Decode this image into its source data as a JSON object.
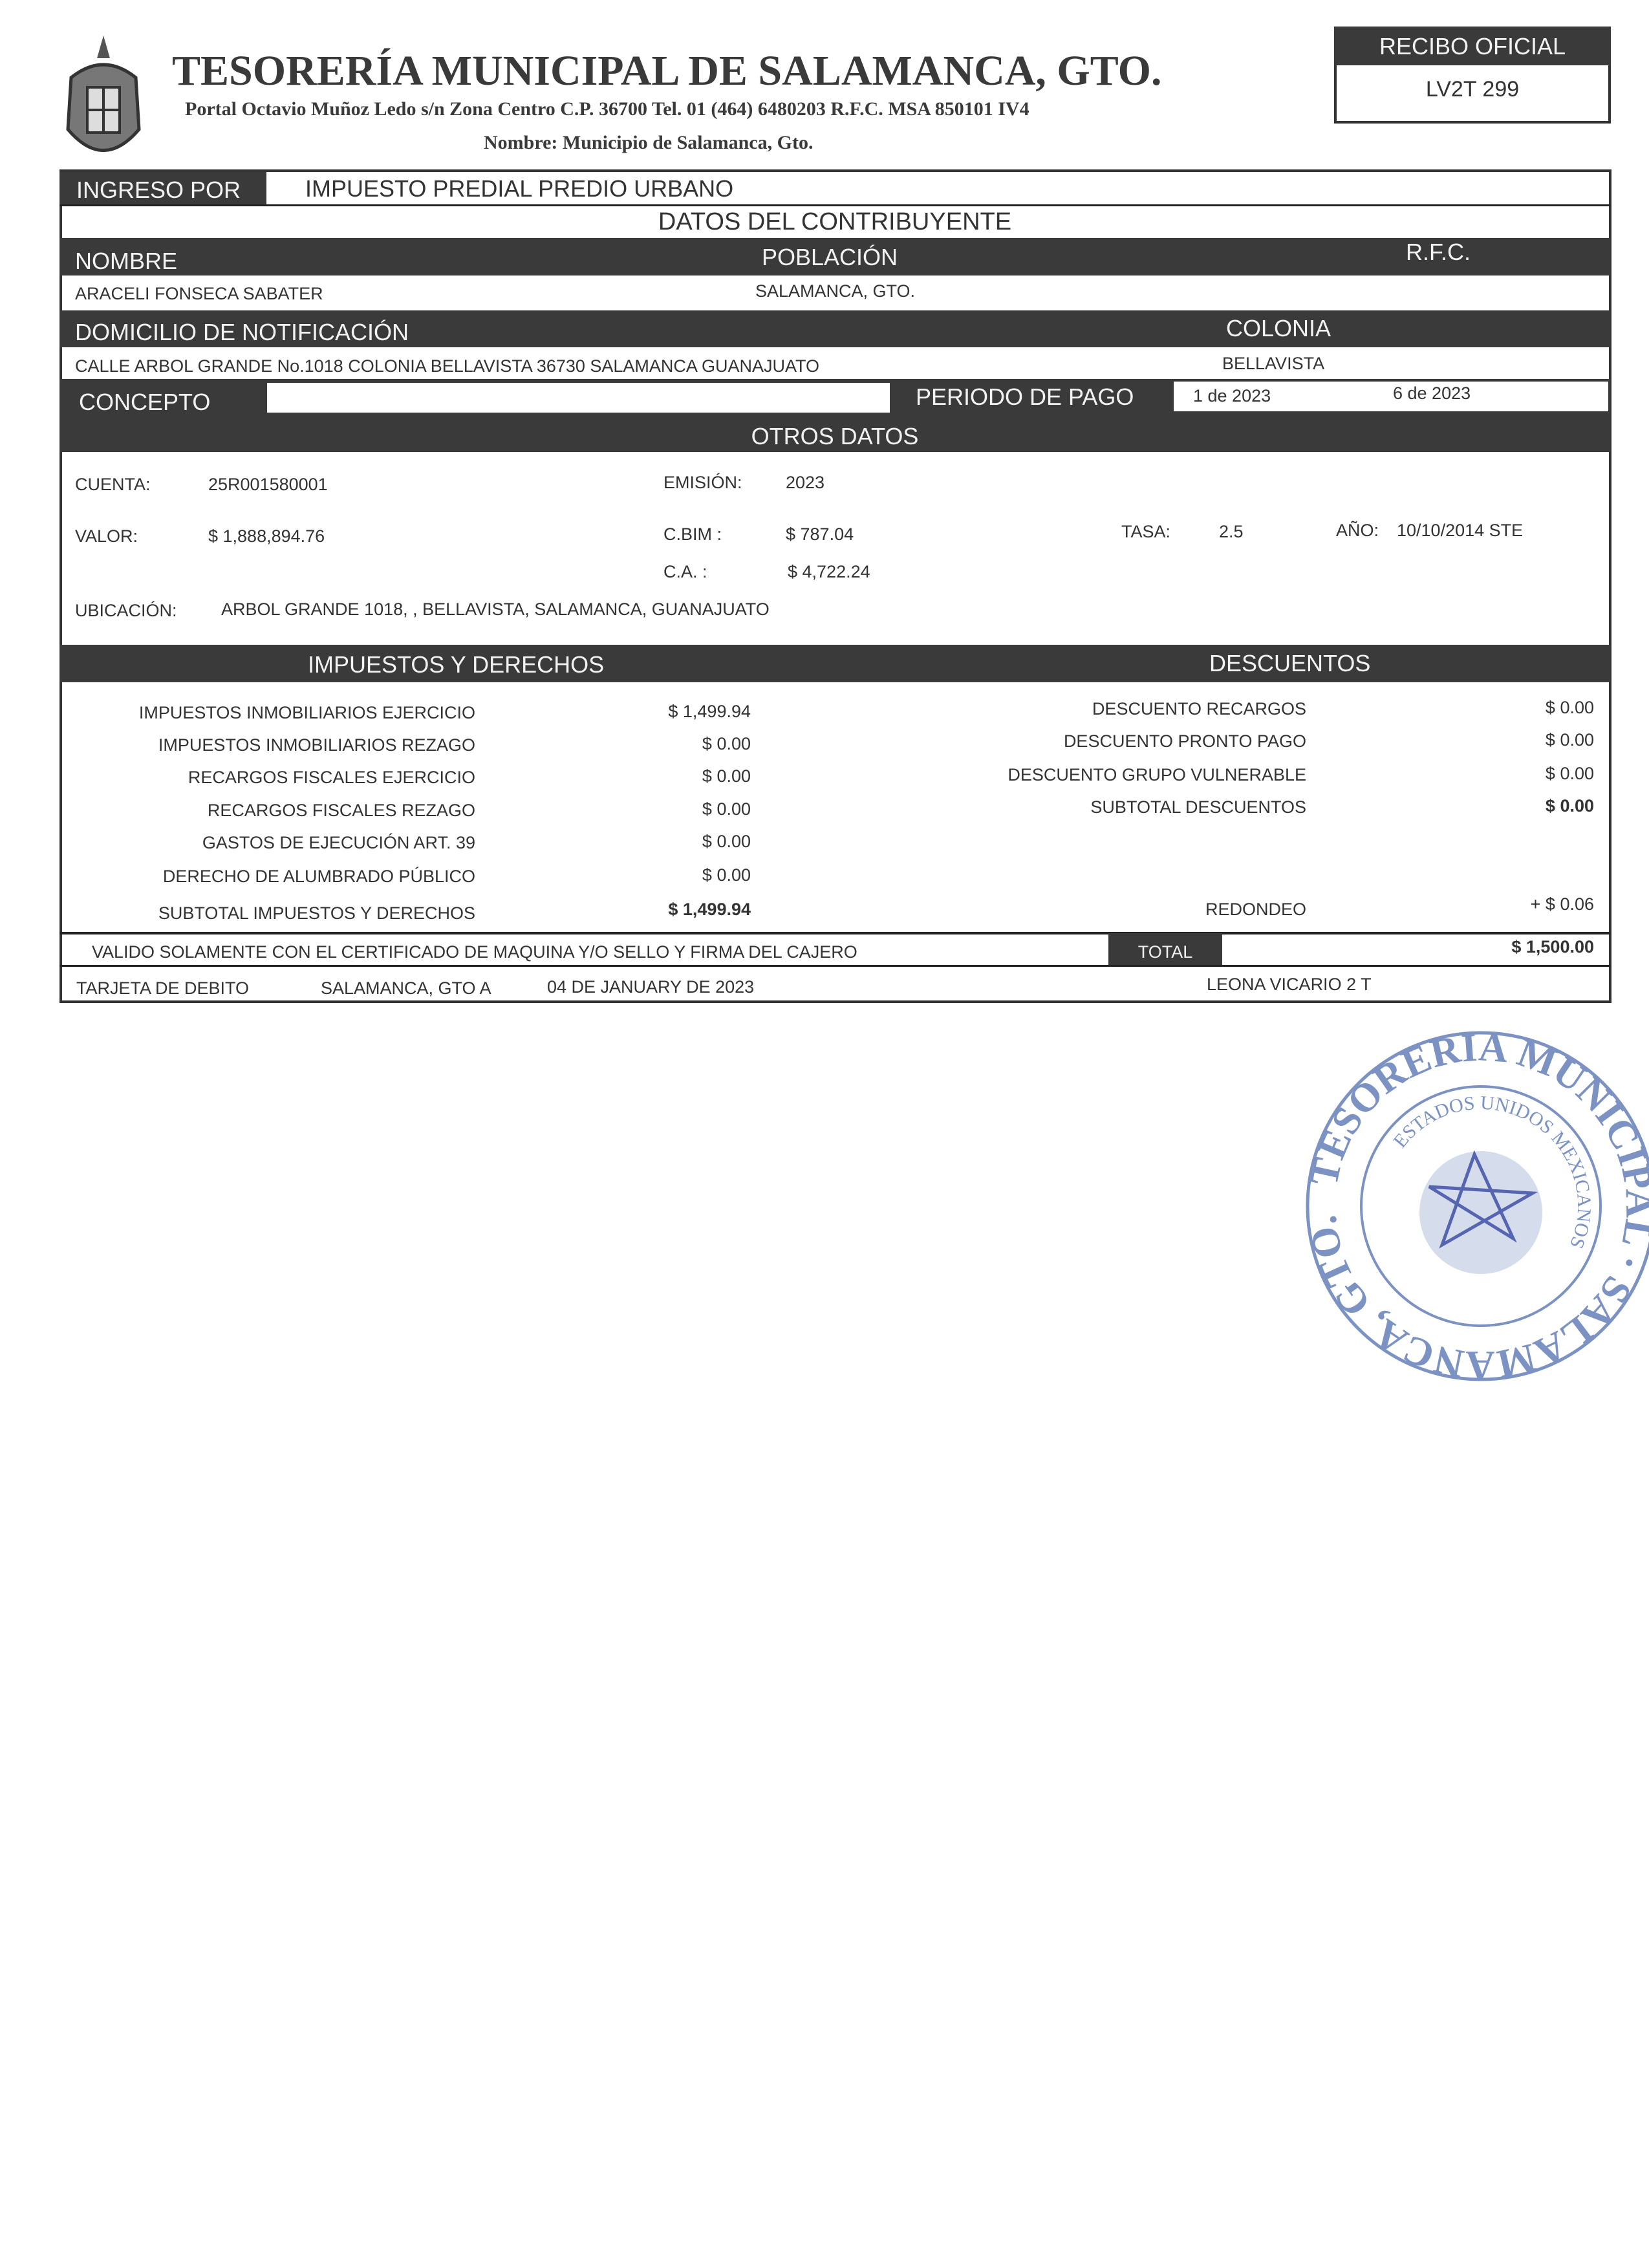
{
  "header": {
    "title": "TESORERÍA MUNICIPAL DE SALAMANCA, GTO.",
    "address": "Portal Octavio Muñoz Ledo s/n Zona Centro C.P. 36700 Tel. 01 (464) 6480203 R.F.C. MSA 850101 IV4",
    "nombre": "Nombre: Municipio de Salamanca, Gto.",
    "logo_icon": "coat-of-arms-icon"
  },
  "recibo": {
    "label": "RECIBO OFICIAL",
    "folio": "LV2T 299"
  },
  "ingreso": {
    "label": "INGRESO POR",
    "value": "IMPUESTO PREDIAL PREDIO URBANO"
  },
  "contribuyente": {
    "title": "DATOS DEL CONTRIBUYENTE",
    "nombre_label": "NOMBRE",
    "poblacion_label": "POBLACIÓN",
    "rfc_label": "R.F.C.",
    "nombre": "ARACELI FONSECA SABATER",
    "poblacion": "SALAMANCA, GTO.",
    "domicilio_label": "DOMICILIO DE NOTIFICACIÓN",
    "colonia_label": "COLONIA",
    "domicilio": "CALLE ARBOL GRANDE No.1018  COLONIA BELLAVISTA 36730 SALAMANCA GUANAJUATO",
    "colonia": "BELLAVISTA"
  },
  "concepto": {
    "label": "CONCEPTO",
    "value": "",
    "periodo_label": "PERIODO DE PAGO",
    "periodo_desde": "1 de 2023",
    "periodo_hasta": "6 de 2023"
  },
  "otros": {
    "title": "OTROS DATOS",
    "cuenta_label": "CUENTA:",
    "cuenta": "25R001580001",
    "emision_label": "EMISIÓN:",
    "emision": "2023",
    "valor_label": "VALOR:",
    "valor": "$ 1,888,894.76",
    "cbim_label": "C.BIM  :",
    "cbim": "$ 787.04",
    "tasa_label": "TASA:",
    "tasa": "2.5",
    "ano_label": "AÑO:",
    "ano": "10/10/2014 STE",
    "ca_label": "C.A.    :",
    "ca": "$ 4,722.24",
    "ubicacion_label": "UBICACIÓN:",
    "ubicacion": "ARBOL GRANDE 1018, , BELLAVISTA, SALAMANCA, GUANAJUATO"
  },
  "impuestos": {
    "title": "IMPUESTOS Y DERECHOS",
    "rows": [
      {
        "label": "IMPUESTOS INMOBILIARIOS EJERCICIO",
        "amount": "$ 1,499.94"
      },
      {
        "label": "IMPUESTOS INMOBILIARIOS REZAGO",
        "amount": "$ 0.00"
      },
      {
        "label": "RECARGOS FISCALES EJERCICIO",
        "amount": "$ 0.00"
      },
      {
        "label": "RECARGOS FISCALES REZAGO",
        "amount": "$ 0.00"
      },
      {
        "label": "GASTOS DE EJECUCIÓN ART. 39",
        "amount": "$ 0.00"
      },
      {
        "label": "DERECHO DE ALUMBRADO PÚBLICO",
        "amount": "$ 0.00"
      },
      {
        "label": "SUBTOTAL IMPUESTOS Y DERECHOS",
        "amount": "$ 1,499.94"
      }
    ]
  },
  "descuentos": {
    "title": "DESCUENTOS",
    "rows": [
      {
        "label": "DESCUENTO RECARGOS",
        "amount": "$ 0.00"
      },
      {
        "label": "DESCUENTO PRONTO PAGO",
        "amount": "$ 0.00"
      },
      {
        "label": "DESCUENTO GRUPO VULNERABLE",
        "amount": "$ 0.00"
      },
      {
        "label": "SUBTOTAL DESCUENTOS",
        "amount": "$ 0.00"
      }
    ],
    "redondeo_label": "REDONDEO",
    "redondeo": "+ $ 0.06"
  },
  "footer": {
    "valido": "VALIDO SOLAMENTE CON EL CERTIFICADO DE MAQUINA Y/O SELLO Y FIRMA DEL CAJERO",
    "total_label": "TOTAL",
    "total": "$ 1,500.00",
    "forma_pago": "TARJETA DE DEBITO",
    "lugar": "SALAMANCA, GTO A",
    "fecha": "04 DE JANUARY DE 2023",
    "cajero": "LEONA VICARIO 2 T"
  },
  "stamp": {
    "outer_text": "TESORERIA MUNICIPAL SALAMANCA, GTO.",
    "inner_text": "ESTADOS UNIDOS MEXICANOS",
    "color": "#5b78b5"
  }
}
